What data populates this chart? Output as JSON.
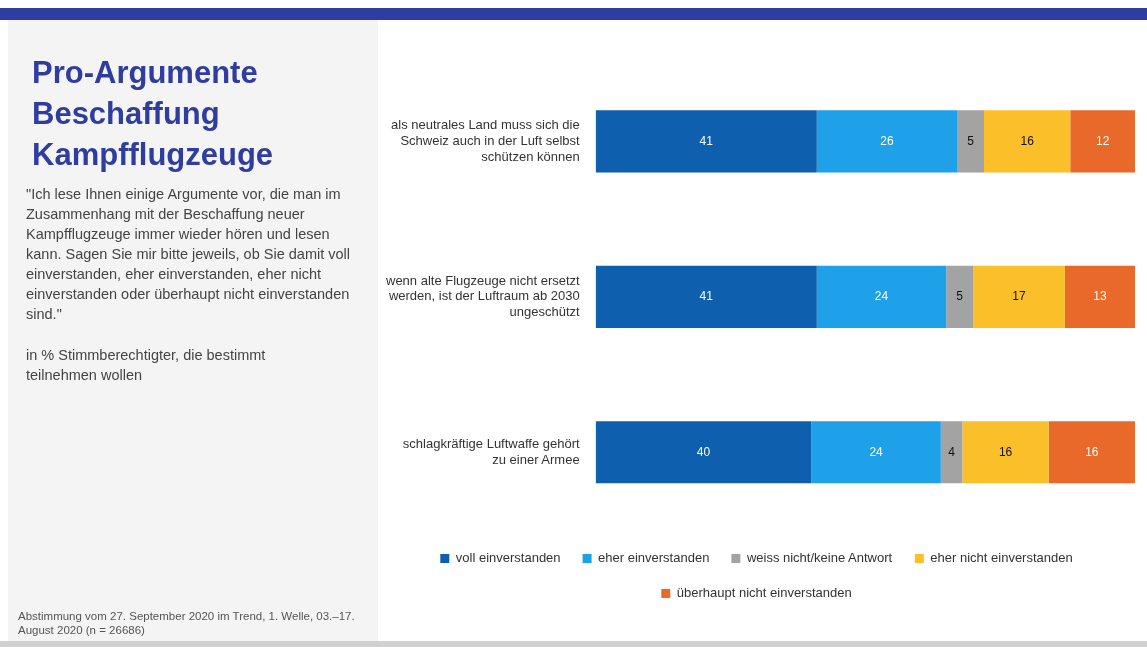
{
  "chart_data": {
    "type": "bar",
    "orientation": "horizontal",
    "stacked": true,
    "title": "Pro-Argumente Beschaffung Kampfflugzeuge",
    "subtitle": "\"Ich lese Ihnen einige Argumente vor, die man im Zusammenhang mit der Beschaffung neuer Kampfflugzeuge immer wieder hören und lesen kann. Sagen Sie mir bitte jeweils, ob Sie damit voll einverstanden, eher einverstanden, eher nicht einverstanden oder überhaupt nicht einverstanden sind.\"",
    "annotations": [
      "in % Stimmberechtigter, die bestimmt teilnehmen wollen",
      "Abstimmung vom 27. September 2020 im Trend, 1. Welle, 03.–17. August 2020 (n = 26686)"
    ],
    "categories": [
      "als neutrales Land muss sich die Schweiz auch in der Luft selbst schützen können",
      "wenn alte Flugzeuge nicht ersetzt werden, ist der Luftraum ab 2030 ungeschützt",
      "schlagkräftige Luftwaffe gehört zu einer Armee"
    ],
    "series": [
      {
        "name": "voll einverstanden",
        "color": "#0e5fae",
        "values": [
          41,
          41,
          40
        ]
      },
      {
        "name": "eher einverstanden",
        "color": "#1ea1e8",
        "values": [
          26,
          24,
          24
        ]
      },
      {
        "name": "weiss nicht/keine Antwort",
        "color": "#a3a3a3",
        "values": [
          5,
          5,
          4
        ]
      },
      {
        "name": "eher nicht einverstanden",
        "color": "#fbbf2a",
        "values": [
          16,
          17,
          16
        ]
      },
      {
        "name": "überhaupt nicht einverstanden",
        "color": "#e8692a",
        "values": [
          12,
          13,
          16
        ]
      }
    ],
    "data_labels": true,
    "legend": "bottom"
  }
}
